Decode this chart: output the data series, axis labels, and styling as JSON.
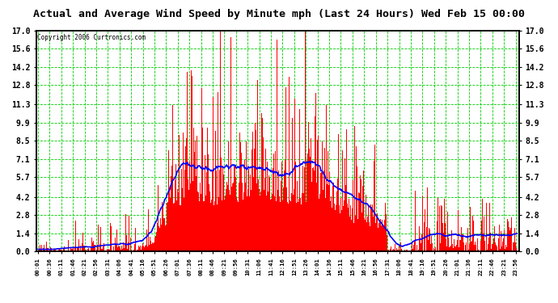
{
  "title": "Actual and Average Wind Speed by Minute mph (Last 24 Hours) Wed Feb 15 00:00",
  "copyright": "Copyright 2006 Curtronics.com",
  "yticks": [
    0.0,
    1.4,
    2.8,
    4.2,
    5.7,
    7.1,
    8.5,
    9.9,
    11.3,
    12.8,
    14.2,
    15.6,
    17.0
  ],
  "ymax": 17.0,
  "ymin": 0.0,
  "bar_color": "#ff0000",
  "line_color": "#0000ff",
  "grid_color": "#00cc00",
  "bg_color": "#ffffff",
  "fig_bg_color": "#ffffff",
  "n_minutes": 1440,
  "x_tick_labels": [
    "00:01",
    "00:36",
    "01:11",
    "01:46",
    "02:21",
    "02:56",
    "03:31",
    "04:06",
    "04:41",
    "05:16",
    "05:51",
    "06:26",
    "07:01",
    "07:36",
    "08:11",
    "08:46",
    "09:21",
    "09:56",
    "10:31",
    "11:06",
    "11:41",
    "12:16",
    "12:51",
    "13:26",
    "14:01",
    "14:36",
    "15:11",
    "15:46",
    "16:21",
    "16:56",
    "17:31",
    "18:06",
    "18:41",
    "19:16",
    "19:51",
    "20:26",
    "21:01",
    "21:36",
    "22:11",
    "22:46",
    "23:21",
    "23:56"
  ],
  "x_tick_positions": [
    0,
    35,
    70,
    105,
    140,
    175,
    210,
    245,
    280,
    315,
    350,
    385,
    420,
    455,
    490,
    525,
    560,
    595,
    630,
    665,
    700,
    735,
    770,
    805,
    840,
    875,
    910,
    945,
    980,
    1015,
    1050,
    1085,
    1120,
    1155,
    1190,
    1225,
    1260,
    1295,
    1330,
    1365,
    1400,
    1435
  ]
}
